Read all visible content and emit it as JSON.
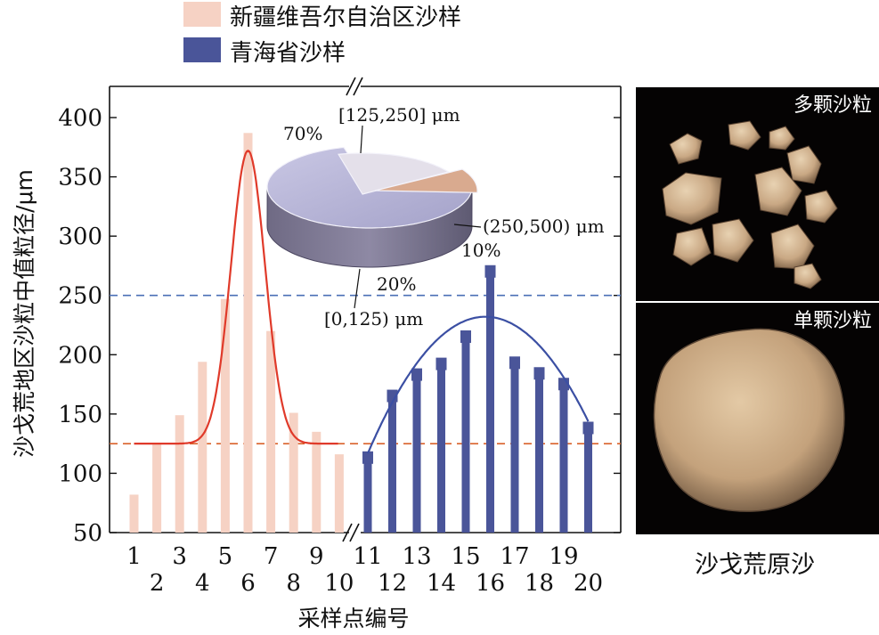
{
  "chart_data": [
    {
      "type": "bar",
      "xlabel": "采样点编号",
      "ylabel": "沙戈荒地区沙粒中值粒径/μm",
      "ylim": [
        50,
        420
      ],
      "yticks": [
        50,
        100,
        150,
        200,
        250,
        300,
        350,
        400
      ],
      "x_ticks_upper": [
        "1",
        "3",
        "5",
        "7",
        "9",
        "11",
        "13",
        "15",
        "17",
        "19"
      ],
      "x_ticks_lower": [
        "2",
        "4",
        "6",
        "8",
        "10",
        "12",
        "14",
        "16",
        "18",
        "20"
      ],
      "reference_lines": [
        {
          "value": 250,
          "color": "#4a6fb5",
          "style": "dashed"
        },
        {
          "value": 125,
          "color": "#d9622b",
          "style": "dashed"
        }
      ],
      "legend_position": "top-left",
      "series": [
        {
          "name": "新疆维吾尔自治区沙样",
          "color": "#f6d2c4",
          "x": [
            1,
            2,
            3,
            4,
            5,
            6,
            7,
            8,
            9,
            10
          ],
          "values": [
            82,
            125,
            149,
            194,
            247,
            387,
            220,
            151,
            135,
            116
          ],
          "fit": {
            "type": "gaussian",
            "baseline": 125,
            "peak": 372,
            "center": 6,
            "sigma": 0.75,
            "color": "#e03a2a"
          }
        },
        {
          "name": "青海省沙样",
          "color": "#4a5599",
          "x": [
            11,
            12,
            13,
            14,
            15,
            16,
            17,
            18,
            19,
            20
          ],
          "values": [
            117,
            169,
            187,
            196,
            219,
            274,
            197,
            188,
            179,
            142
          ],
          "fit": {
            "type": "parabola",
            "peak": 232,
            "center": 15.8,
            "curvature": 5.0,
            "color": "#3b4fa3"
          }
        }
      ]
    },
    {
      "type": "pie",
      "slices": [
        {
          "label": "[125,250] μm",
          "percent": "70%",
          "value": 70,
          "color": "#b7b5d6"
        },
        {
          "label": "(250,500) μm",
          "percent": "10%",
          "value": 10,
          "color": "#d9aa8f"
        },
        {
          "label": "[0,125) μm",
          "percent": "20%",
          "value": 20,
          "color": "#e4e0ea"
        }
      ]
    }
  ],
  "panel": {
    "top_label": "多颗沙粒",
    "bottom_label": "单颗沙粒",
    "caption": "沙戈荒原沙"
  }
}
